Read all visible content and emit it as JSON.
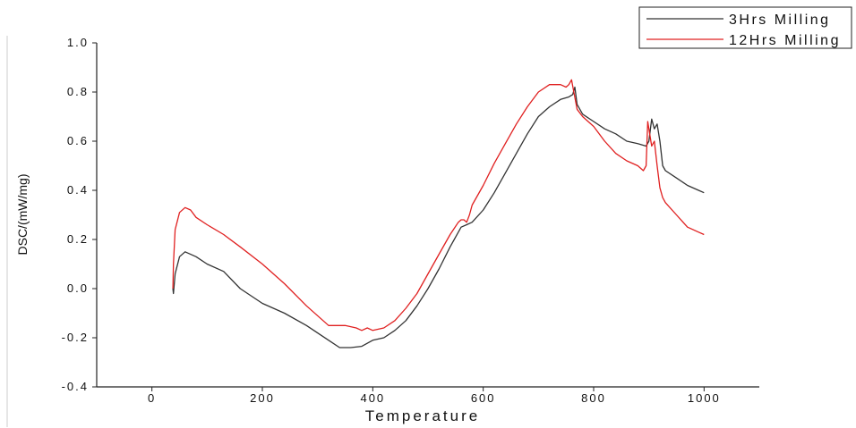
{
  "chart_data": {
    "type": "line",
    "xlabel": "Temperature",
    "ylabel": "DSC/(mW/mg)",
    "xlim": [
      -100,
      1100
    ],
    "ylim": [
      -0.4,
      1.0
    ],
    "xticks": [
      "0",
      "200",
      "400",
      "600",
      "800",
      "1000"
    ],
    "yticks": [
      "-0.4",
      "-0.2",
      "0.0",
      "0.2",
      "0.4",
      "0.6",
      "0.8",
      "1.0"
    ],
    "grid": false,
    "legend_position": "top-right",
    "series": [
      {
        "name": "3Hrs Milling",
        "color": "#333333",
        "x": [
          38,
          39,
          42,
          50,
          60,
          80,
          100,
          130,
          160,
          200,
          240,
          280,
          320,
          340,
          360,
          380,
          400,
          420,
          440,
          460,
          480,
          500,
          520,
          540,
          560,
          570,
          580,
          600,
          620,
          640,
          660,
          680,
          700,
          720,
          740,
          755,
          762,
          766,
          770,
          780,
          800,
          820,
          840,
          860,
          880,
          895,
          900,
          905,
          910,
          915,
          920,
          925,
          930,
          950,
          970,
          990,
          1000
        ],
        "y": [
          0.0,
          -0.02,
          0.06,
          0.13,
          0.15,
          0.13,
          0.1,
          0.07,
          0.0,
          -0.06,
          -0.1,
          -0.15,
          -0.21,
          -0.24,
          -0.24,
          -0.235,
          -0.21,
          -0.2,
          -0.17,
          -0.13,
          -0.07,
          0.0,
          0.08,
          0.17,
          0.25,
          0.26,
          0.27,
          0.32,
          0.39,
          0.47,
          0.55,
          0.63,
          0.7,
          0.74,
          0.77,
          0.78,
          0.79,
          0.82,
          0.75,
          0.71,
          0.68,
          0.65,
          0.63,
          0.6,
          0.59,
          0.58,
          0.6,
          0.69,
          0.65,
          0.67,
          0.6,
          0.5,
          0.48,
          0.45,
          0.42,
          0.4,
          0.39
        ]
      },
      {
        "name": "12Hrs Milling",
        "color": "#e02020",
        "x": [
          38,
          39,
          42,
          50,
          60,
          70,
          80,
          100,
          130,
          160,
          200,
          240,
          280,
          320,
          330,
          350,
          370,
          380,
          390,
          400,
          420,
          440,
          460,
          480,
          500,
          520,
          540,
          555,
          560,
          565,
          570,
          575,
          580,
          600,
          620,
          640,
          660,
          680,
          700,
          720,
          740,
          750,
          755,
          760,
          765,
          770,
          780,
          800,
          820,
          840,
          860,
          880,
          890,
          895,
          898,
          900,
          905,
          910,
          915,
          920,
          925,
          930,
          950,
          970,
          990,
          1000
        ],
        "y": [
          0.0,
          0.1,
          0.24,
          0.31,
          0.33,
          0.32,
          0.29,
          0.26,
          0.22,
          0.17,
          0.1,
          0.02,
          -0.07,
          -0.15,
          -0.15,
          -0.15,
          -0.16,
          -0.17,
          -0.16,
          -0.17,
          -0.16,
          -0.13,
          -0.08,
          -0.02,
          0.06,
          0.14,
          0.22,
          0.27,
          0.28,
          0.28,
          0.27,
          0.3,
          0.34,
          0.42,
          0.51,
          0.59,
          0.67,
          0.74,
          0.8,
          0.83,
          0.83,
          0.82,
          0.83,
          0.85,
          0.79,
          0.73,
          0.7,
          0.66,
          0.6,
          0.55,
          0.52,
          0.5,
          0.48,
          0.5,
          0.68,
          0.65,
          0.58,
          0.6,
          0.5,
          0.41,
          0.37,
          0.35,
          0.3,
          0.25,
          0.23,
          0.22
        ]
      }
    ]
  }
}
